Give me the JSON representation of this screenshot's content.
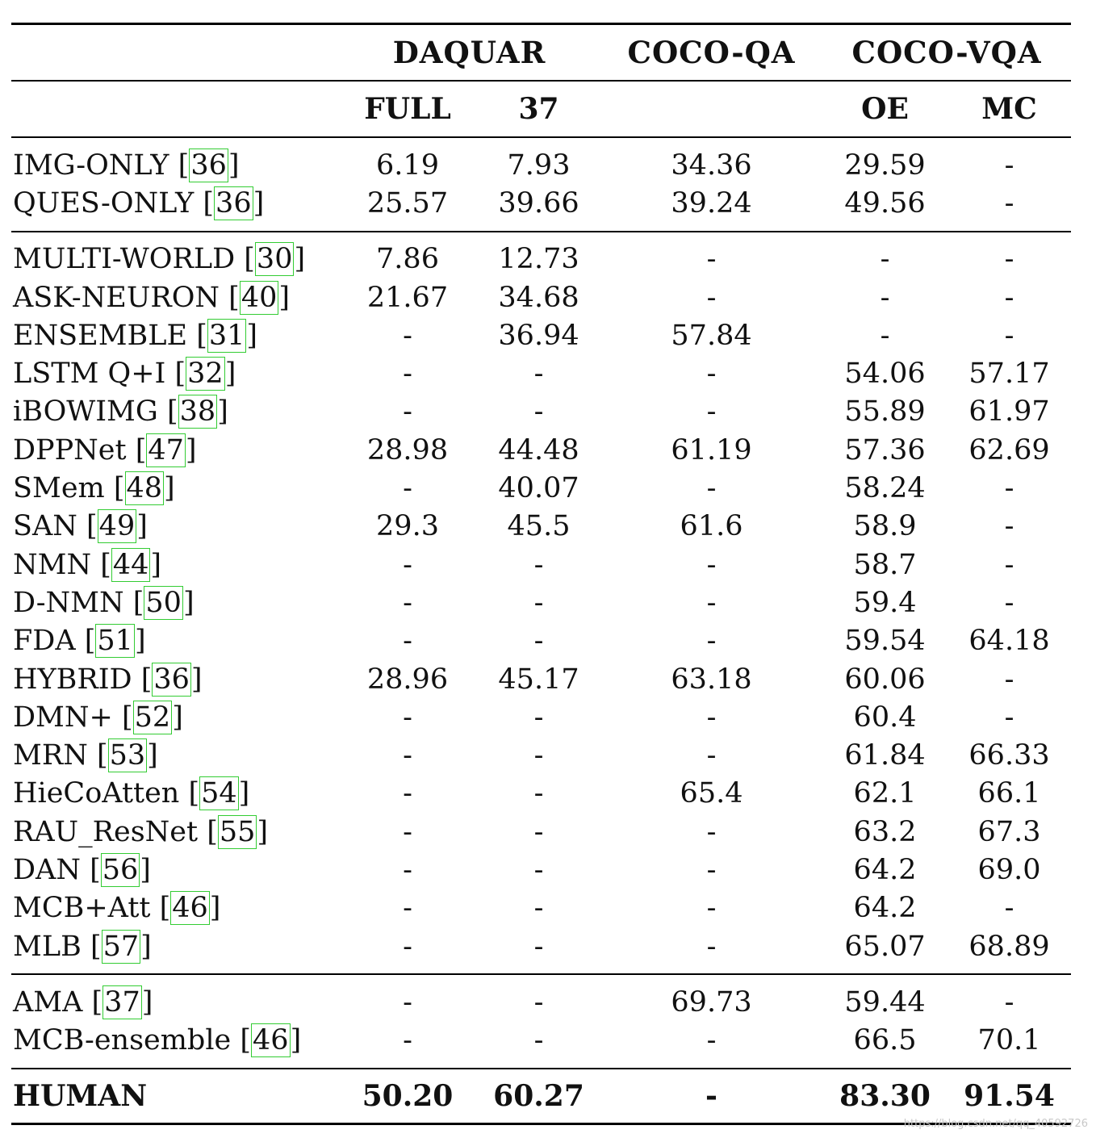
{
  "table": {
    "groups": [
      {
        "label": "DAQUAR"
      },
      {
        "label": "COCO-QA"
      },
      {
        "label": "COCO-VQA"
      }
    ],
    "subheaders": [
      "FULL",
      "37",
      "",
      "OE",
      "MC"
    ],
    "sections": [
      [
        {
          "method": "IMG-ONLY",
          "ref": "36",
          "values": [
            "6.19",
            "7.93",
            "34.36",
            "29.59",
            "-"
          ]
        },
        {
          "method": "QUES-ONLY",
          "ref": "36",
          "values": [
            "25.57",
            "39.66",
            "39.24",
            "49.56",
            "-"
          ]
        }
      ],
      [
        {
          "method": "MULTI-WORLD",
          "ref": "30",
          "values": [
            "7.86",
            "12.73",
            "-",
            "-",
            "-"
          ]
        },
        {
          "method": "ASK-NEURON",
          "ref": "40",
          "values": [
            "21.67",
            "34.68",
            "-",
            "-",
            "-"
          ]
        },
        {
          "method": "ENSEMBLE",
          "ref": "31",
          "values": [
            "-",
            "36.94",
            "57.84",
            "-",
            "-"
          ]
        },
        {
          "method": "LSTM Q+I",
          "ref": "32",
          "values": [
            "-",
            "-",
            "-",
            "54.06",
            "57.17"
          ]
        },
        {
          "method": "iBOWIMG",
          "ref": "38",
          "values": [
            "-",
            "-",
            "-",
            "55.89",
            "61.97"
          ]
        },
        {
          "method": "DPPNet",
          "ref": "47",
          "values": [
            "28.98",
            "44.48",
            "61.19",
            "57.36",
            "62.69"
          ]
        },
        {
          "method": "SMem",
          "ref": "48",
          "values": [
            "-",
            "40.07",
            "-",
            "58.24",
            "-"
          ]
        },
        {
          "method": "SAN",
          "ref": "49",
          "values": [
            "29.3",
            "45.5",
            "61.6",
            "58.9",
            "-"
          ]
        },
        {
          "method": "NMN",
          "ref": "44",
          "values": [
            "-",
            "-",
            "-",
            "58.7",
            "-"
          ]
        },
        {
          "method": "D-NMN",
          "ref": "50",
          "values": [
            "-",
            "-",
            "-",
            "59.4",
            "-"
          ]
        },
        {
          "method": "FDA",
          "ref": "51",
          "values": [
            "-",
            "-",
            "-",
            "59.54",
            "64.18"
          ]
        },
        {
          "method": "HYBRID",
          "ref": "36",
          "values": [
            "28.96",
            "45.17",
            "63.18",
            "60.06",
            "-"
          ]
        },
        {
          "method": "DMN+",
          "ref": "52",
          "values": [
            "-",
            "-",
            "-",
            "60.4",
            "-"
          ]
        },
        {
          "method": "MRN",
          "ref": "53",
          "values": [
            "-",
            "-",
            "-",
            "61.84",
            "66.33"
          ]
        },
        {
          "method": "HieCoAtten",
          "ref": "54",
          "values": [
            "-",
            "-",
            "65.4",
            "62.1",
            "66.1"
          ]
        },
        {
          "method": "RAU_ResNet",
          "ref": "55",
          "values": [
            "-",
            "-",
            "-",
            "63.2",
            "67.3"
          ]
        },
        {
          "method": "DAN",
          "ref": "56",
          "values": [
            "-",
            "-",
            "-",
            "64.2",
            "69.0"
          ]
        },
        {
          "method": "MCB+Att",
          "ref": "46",
          "values": [
            "-",
            "-",
            "-",
            "64.2",
            "-"
          ]
        },
        {
          "method": "MLB",
          "ref": "57",
          "values": [
            "-",
            "-",
            "-",
            "65.07",
            "68.89"
          ]
        }
      ],
      [
        {
          "method": "AMA",
          "ref": "37",
          "values": [
            "-",
            "-",
            "69.73",
            "59.44",
            "-"
          ]
        },
        {
          "method": "MCB-ensemble",
          "ref": "46",
          "values": [
            "-",
            "-",
            "-",
            "66.5",
            "70.1"
          ]
        }
      ]
    ],
    "human": {
      "method": "HUMAN",
      "values": [
        "50.20",
        "60.27",
        "-",
        "83.30",
        "91.54"
      ]
    }
  },
  "watermark": "https://blog.csdn.net/qq_40592726"
}
